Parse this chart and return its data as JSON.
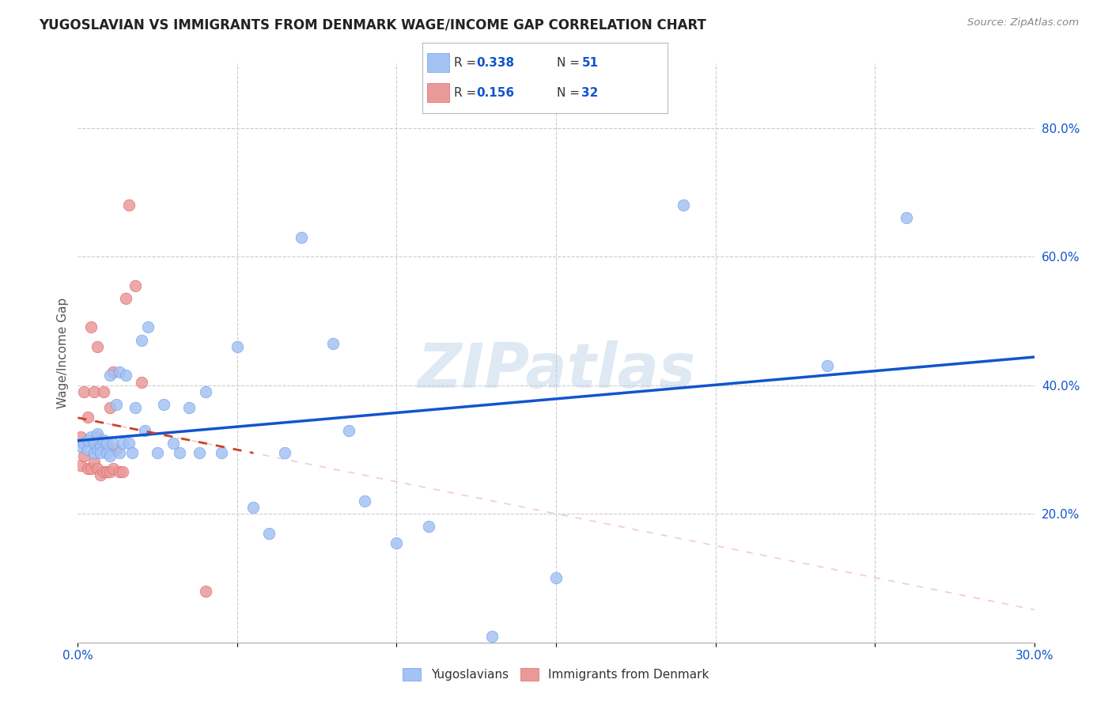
{
  "title": "YUGOSLAVIAN VS IMMIGRANTS FROM DENMARK WAGE/INCOME GAP CORRELATION CHART",
  "source": "Source: ZipAtlas.com",
  "ylabel": "Wage/Income Gap",
  "xlim": [
    0.0,
    0.3
  ],
  "ylim": [
    0.0,
    0.9
  ],
  "xticks": [
    0.0,
    0.05,
    0.1,
    0.15,
    0.2,
    0.25,
    0.3
  ],
  "xticklabels": [
    "0.0%",
    "",
    "",
    "",
    "",
    "",
    "30.0%"
  ],
  "yticks_right": [
    0.2,
    0.4,
    0.6,
    0.8
  ],
  "yticklabels_right": [
    "20.0%",
    "40.0%",
    "60.0%",
    "80.0%"
  ],
  "blue_color": "#a4c2f4",
  "pink_color": "#ea9999",
  "blue_edge_color": "#6d9eeb",
  "pink_edge_color": "#e06666",
  "blue_line_color": "#1155cc",
  "pink_line_color": "#cc4125",
  "grid_color": "#cccccc",
  "background_color": "#ffffff",
  "legend_label1": "Yugoslavians",
  "legend_label2": "Immigrants from Denmark",
  "watermark": "ZIPatlas",
  "blue_x": [
    0.001,
    0.002,
    0.003,
    0.003,
    0.004,
    0.005,
    0.005,
    0.006,
    0.006,
    0.007,
    0.007,
    0.008,
    0.009,
    0.009,
    0.01,
    0.01,
    0.011,
    0.012,
    0.013,
    0.013,
    0.014,
    0.015,
    0.016,
    0.017,
    0.018,
    0.02,
    0.021,
    0.022,
    0.025,
    0.027,
    0.03,
    0.032,
    0.035,
    0.038,
    0.04,
    0.045,
    0.05,
    0.055,
    0.06,
    0.065,
    0.07,
    0.08,
    0.085,
    0.09,
    0.1,
    0.11,
    0.13,
    0.15,
    0.19,
    0.235,
    0.26
  ],
  "blue_y": [
    0.305,
    0.31,
    0.3,
    0.315,
    0.32,
    0.295,
    0.31,
    0.3,
    0.325,
    0.305,
    0.295,
    0.315,
    0.295,
    0.31,
    0.29,
    0.415,
    0.31,
    0.37,
    0.295,
    0.42,
    0.31,
    0.415,
    0.31,
    0.295,
    0.365,
    0.47,
    0.33,
    0.49,
    0.295,
    0.37,
    0.31,
    0.295,
    0.365,
    0.295,
    0.39,
    0.295,
    0.46,
    0.21,
    0.17,
    0.295,
    0.63,
    0.465,
    0.33,
    0.22,
    0.155,
    0.18,
    0.01,
    0.1,
    0.68,
    0.43,
    0.66
  ],
  "pink_x": [
    0.001,
    0.001,
    0.002,
    0.002,
    0.003,
    0.003,
    0.004,
    0.004,
    0.005,
    0.005,
    0.005,
    0.006,
    0.006,
    0.006,
    0.007,
    0.007,
    0.008,
    0.008,
    0.009,
    0.009,
    0.01,
    0.01,
    0.011,
    0.011,
    0.012,
    0.013,
    0.014,
    0.015,
    0.016,
    0.018,
    0.02,
    0.04
  ],
  "pink_y": [
    0.275,
    0.32,
    0.29,
    0.39,
    0.27,
    0.35,
    0.27,
    0.49,
    0.28,
    0.31,
    0.39,
    0.27,
    0.32,
    0.46,
    0.26,
    0.31,
    0.265,
    0.39,
    0.265,
    0.31,
    0.265,
    0.365,
    0.27,
    0.42,
    0.3,
    0.265,
    0.265,
    0.535,
    0.68,
    0.555,
    0.405,
    0.08
  ],
  "pink_line_x": [
    0.0,
    0.055
  ],
  "pink_line_y_intercept": 0.28,
  "pink_line_slope": 5.5
}
